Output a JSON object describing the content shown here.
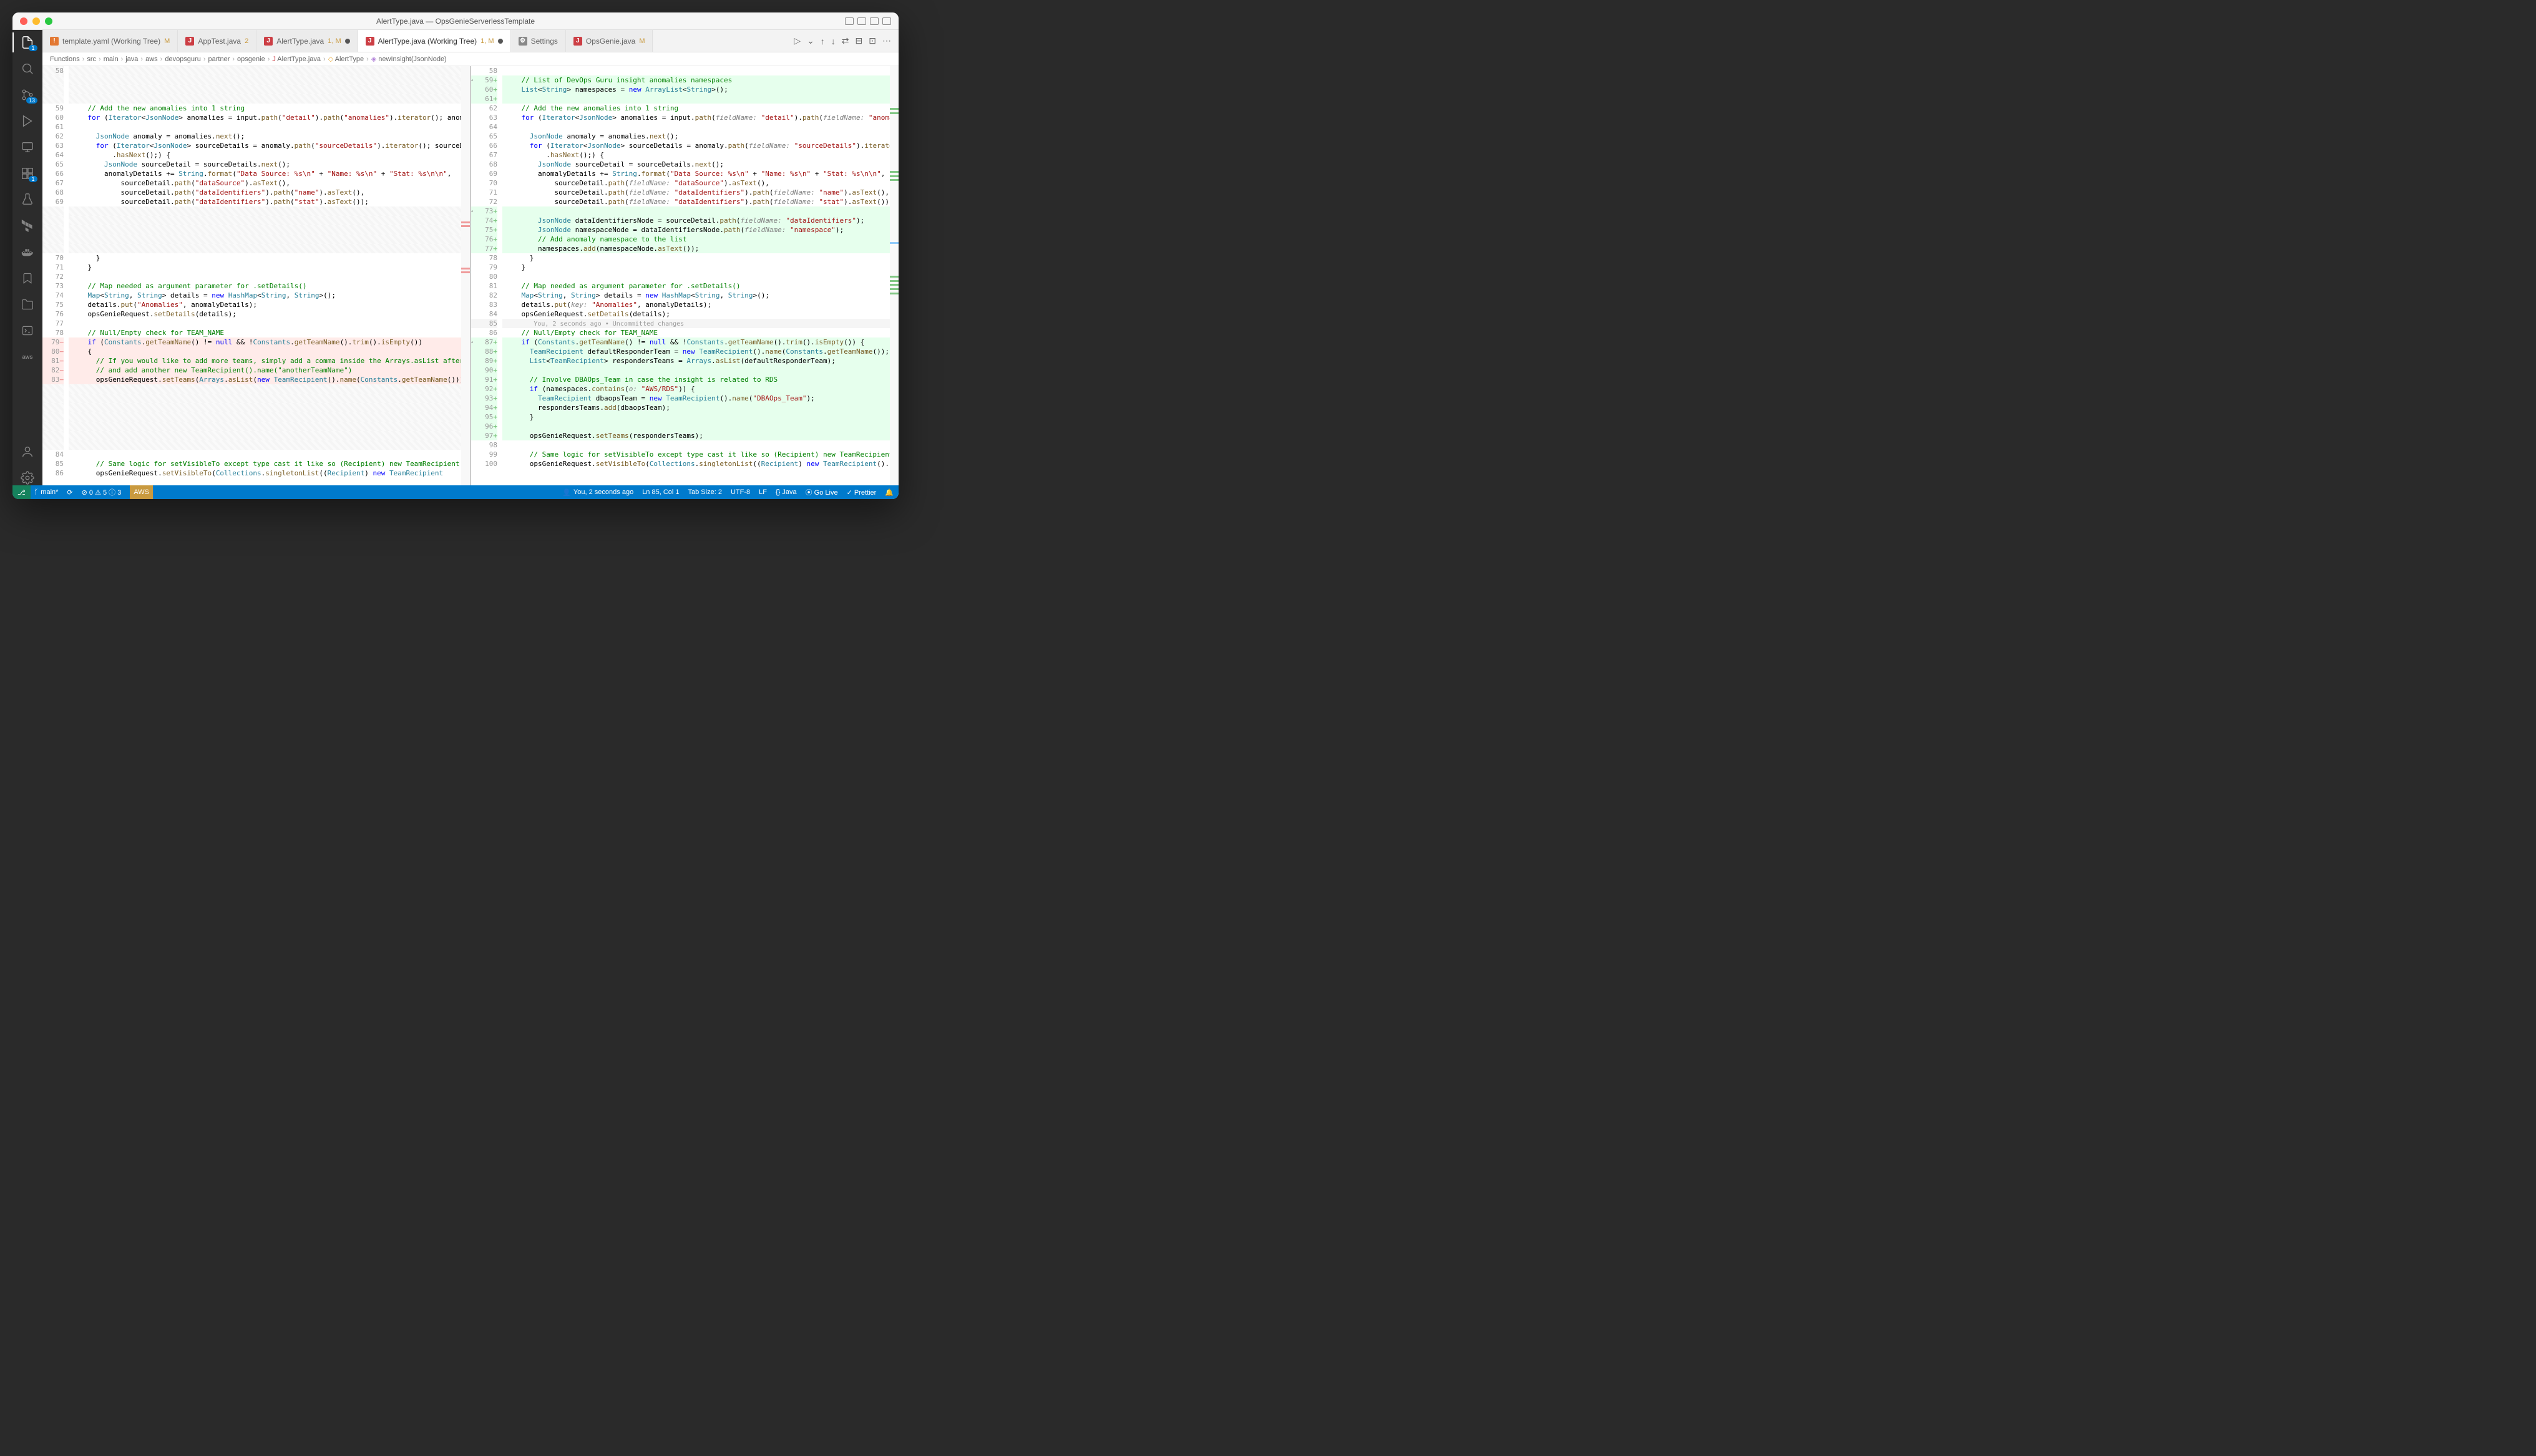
{
  "window": {
    "title": "AlertType.java — OpsGenieServerlessTemplate"
  },
  "tabs": [
    {
      "icon": "!",
      "iconColor": "#e37933",
      "label": "template.yaml (Working Tree)",
      "mod": "M",
      "active": false
    },
    {
      "icon": "J",
      "iconColor": "#cc3e44",
      "label": "AppTest.java",
      "mod": "2",
      "active": false
    },
    {
      "icon": "J",
      "iconColor": "#cc3e44",
      "label": "AlertType.java",
      "mod": "1, M",
      "dirty": true,
      "active": false
    },
    {
      "icon": "J",
      "iconColor": "#cc3e44",
      "label": "AlertType.java (Working Tree)",
      "mod": "1, M",
      "dirty": true,
      "active": true
    },
    {
      "icon": "⚙",
      "iconColor": "#888",
      "label": "Settings",
      "active": false
    },
    {
      "icon": "J",
      "iconColor": "#cc3e44",
      "label": "OpsGenie.java",
      "mod": "M",
      "active": false
    }
  ],
  "breadcrumbs": [
    "Functions",
    "src",
    "main",
    "java",
    "aws",
    "devopsguru",
    "partner",
    "opsgenie",
    "AlertType.java",
    "AlertType",
    "newInsight(JsonNode)"
  ],
  "activitybar": {
    "explorer_badge": "1",
    "scm_badge": "13",
    "ext_badge": "1"
  },
  "left_pane": {
    "lines": [
      {
        "n": "58",
        "cls": "ignore-hatch",
        "html": ""
      },
      {
        "n": "",
        "cls": "ignore-hatch",
        "html": ""
      },
      {
        "n": "",
        "cls": "ignore-hatch",
        "html": ""
      },
      {
        "n": "",
        "cls": "ignore-hatch",
        "html": ""
      },
      {
        "n": "59",
        "html": "    <span class='c-comment'>// Add the new anomalies into 1 string</span>"
      },
      {
        "n": "60",
        "html": "    <span class='c-kw'>for</span> (<span class='c-type'>Iterator</span>&lt;<span class='c-type'>JsonNode</span>&gt; anomalies = input.<span class='c-method'>path</span>(<span class='c-str'>\"detail\"</span>).<span class='c-method'>path</span>(<span class='c-str'>\"anomalies\"</span>).<span class='c-method'>iterator</span>(); anoma"
      },
      {
        "n": "61",
        "html": ""
      },
      {
        "n": "62",
        "html": "      <span class='c-type'>JsonNode</span> anomaly = anomalies.<span class='c-method'>next</span>();"
      },
      {
        "n": "63",
        "html": "      <span class='c-kw'>for</span> (<span class='c-type'>Iterator</span>&lt;<span class='c-type'>JsonNode</span>&gt; sourceDetails = anomaly.<span class='c-method'>path</span>(<span class='c-str'>\"sourceDetails\"</span>).<span class='c-method'>iterator</span>(); sourceDe"
      },
      {
        "n": "64",
        "html": "          .<span class='c-method'>hasNext</span>();) {"
      },
      {
        "n": "65",
        "html": "        <span class='c-type'>JsonNode</span> sourceDetail = sourceDetails.<span class='c-method'>next</span>();"
      },
      {
        "n": "66",
        "html": "        anomalyDetails += <span class='c-type'>String</span>.<span class='c-method'>format</span>(<span class='c-str'>\"Data Source: %s\\n\"</span> + <span class='c-str'>\"Name: %s\\n\"</span> + <span class='c-str'>\"Stat: %s\\n\\n\"</span>,"
      },
      {
        "n": "67",
        "html": "            sourceDetail.<span class='c-method'>path</span>(<span class='c-str'>\"dataSource\"</span>).<span class='c-method'>asText</span>(),"
      },
      {
        "n": "68",
        "html": "            sourceDetail.<span class='c-method'>path</span>(<span class='c-str'>\"dataIdentifiers\"</span>).<span class='c-method'>path</span>(<span class='c-str'>\"name\"</span>).<span class='c-method'>asText</span>(),"
      },
      {
        "n": "69",
        "html": "            sourceDetail.<span class='c-method'>path</span>(<span class='c-str'>\"dataIdentifiers\"</span>).<span class='c-method'>path</span>(<span class='c-str'>\"stat\"</span>).<span class='c-method'>asText</span>());"
      },
      {
        "n": "",
        "cls": "ignore-hatch",
        "html": ""
      },
      {
        "n": "",
        "cls": "ignore-hatch",
        "html": ""
      },
      {
        "n": "",
        "cls": "ignore-hatch",
        "html": ""
      },
      {
        "n": "",
        "cls": "ignore-hatch",
        "html": ""
      },
      {
        "n": "",
        "cls": "ignore-hatch",
        "html": ""
      },
      {
        "n": "70",
        "html": "      }"
      },
      {
        "n": "71",
        "html": "    }"
      },
      {
        "n": "72",
        "html": ""
      },
      {
        "n": "73",
        "html": "    <span class='c-comment'>// Map needed as argument parameter for .setDetails()</span>"
      },
      {
        "n": "74",
        "html": "    <span class='c-type'>Map</span>&lt;<span class='c-type'>String</span>, <span class='c-type'>String</span>&gt; details = <span class='c-kw'>new</span> <span class='c-type'>HashMap</span>&lt;<span class='c-type'>String</span>, <span class='c-type'>String</span>&gt;();"
      },
      {
        "n": "75",
        "html": "    details.<span class='c-method'>put</span>(<span class='c-str'>\"Anomalies\"</span>, anomalyDetails);"
      },
      {
        "n": "76",
        "html": "    opsGenieRequest.<span class='c-method'>setDetails</span>(details);"
      },
      {
        "n": "77",
        "html": ""
      },
      {
        "n": "78",
        "html": "    <span class='c-comment'>// Null/Empty check for TEAM_NAME</span>"
      },
      {
        "n": "79",
        "cls": "removed",
        "gmark": "−",
        "html": "    <span class='c-kw'>if</span> (<span class='c-type'>Constants</span>.<span class='c-method'>getTeamName</span>() != <span class='c-kw'>null</span> &amp;&amp; !<span class='c-type'>Constants</span>.<span class='c-method'>getTeamName</span>().<span class='c-method'>trim</span>().<span class='c-method'>isEmpty</span>())"
      },
      {
        "n": "80",
        "cls": "removed",
        "gmark": "−",
        "html": "    {"
      },
      {
        "n": "81",
        "cls": "removed",
        "gmark": "−",
        "html": "      <span class='c-comment'>// If you would like to add more teams, simply add a comma inside the Arrays.asList after</span>"
      },
      {
        "n": "82",
        "cls": "removed",
        "gmark": "−",
        "html": "      <span class='c-comment'>// and add another new TeamRecipient().name(\"anotherTeamName\")</span>"
      },
      {
        "n": "83",
        "cls": "removed",
        "gmark": "−",
        "html": "      opsGenieRequest.<span class='c-method'>setTeams</span>(<span class='c-type'>Arrays</span>.<span class='c-method'>asList</span>(<span class='c-kw'>new</span> <span class='c-type'>TeamRecipient</span>().<span class='c-method'>name</span>(<span class='c-type'>Constants</span>.<span class='c-method'>getTeamName</span>())));"
      },
      {
        "n": "",
        "cls": "ignore-hatch",
        "html": ""
      },
      {
        "n": "",
        "cls": "ignore-hatch",
        "html": ""
      },
      {
        "n": "",
        "cls": "ignore-hatch",
        "html": ""
      },
      {
        "n": "",
        "cls": "ignore-hatch",
        "html": ""
      },
      {
        "n": "",
        "cls": "ignore-hatch",
        "html": ""
      },
      {
        "n": "",
        "cls": "ignore-hatch",
        "html": ""
      },
      {
        "n": "",
        "cls": "ignore-hatch",
        "html": ""
      },
      {
        "n": "84",
        "html": ""
      },
      {
        "n": "85",
        "html": "      <span class='c-comment'>// Same logic for setVisibleTo except type cast it like so (Recipient) new TeamRecipient</span>"
      },
      {
        "n": "86",
        "html": "      opsGenieRequest.<span class='c-method'>setVisibleTo</span>(<span class='c-type'>Collections</span>.<span class='c-method'>singletonList</span>((<span class='c-type'>Recipient</span>) <span class='c-kw'>new</span> <span class='c-type'>TeamRecipient</span>"
      }
    ]
  },
  "right_pane": {
    "lines": [
      {
        "n": "58",
        "html": ""
      },
      {
        "n": "59",
        "cls": "added",
        "gmark": "+",
        "html": "    <span class='c-comment'>// List of DevOps Guru insight anomalies namespaces</span>"
      },
      {
        "n": "60",
        "cls": "added",
        "gmark": "+",
        "html": "    <span class='c-type'>List</span>&lt;<span class='c-type'>String</span>&gt; namespaces = <span class='c-kw'>new</span> <span class='c-type'>ArrayList</span>&lt;<span class='c-type'>String</span>&gt;();"
      },
      {
        "n": "61",
        "cls": "added",
        "gmark": "+",
        "html": ""
      },
      {
        "n": "62",
        "html": "    <span class='c-comment'>// Add the new anomalies into 1 string</span>"
      },
      {
        "n": "63",
        "html": "    <span class='c-kw'>for</span> (<span class='c-type'>Iterator</span>&lt;<span class='c-type'>JsonNode</span>&gt; anomalies = input.<span class='c-method'>path</span>(<span class='c-ann'>fieldName:</span> <span class='c-str'>\"detail\"</span>).<span class='c-method'>path</span>(<span class='c-ann'>fieldName:</span> <span class='c-str'>\"anomalies\"</span>)."
      },
      {
        "n": "64",
        "html": ""
      },
      {
        "n": "65",
        "html": "      <span class='c-type'>JsonNode</span> anomaly = anomalies.<span class='c-method'>next</span>();"
      },
      {
        "n": "66",
        "html": "      <span class='c-kw'>for</span> (<span class='c-type'>Iterator</span>&lt;<span class='c-type'>JsonNode</span>&gt; sourceDetails = anomaly.<span class='c-method'>path</span>(<span class='c-ann'>fieldName:</span> <span class='c-str'>\"sourceDetails\"</span>).<span class='c-method'>iterator</span>(); so"
      },
      {
        "n": "67",
        "html": "          .<span class='c-method'>hasNext</span>();) {"
      },
      {
        "n": "68",
        "html": "        <span class='c-type'>JsonNode</span> sourceDetail = sourceDetails.<span class='c-method'>next</span>();"
      },
      {
        "n": "69",
        "html": "        anomalyDetails += <span class='c-type'>String</span>.<span class='c-method'>format</span>(<span class='c-str'>\"Data Source: %s\\n\"</span> + <span class='c-str'>\"Name: %s\\n\"</span> + <span class='c-str'>\"Stat: %s\\n\\n\"</span>,"
      },
      {
        "n": "70",
        "html": "            sourceDetail.<span class='c-method'>path</span>(<span class='c-ann'>fieldName:</span> <span class='c-str'>\"dataSource\"</span>).<span class='c-method'>asText</span>(),"
      },
      {
        "n": "71",
        "html": "            sourceDetail.<span class='c-method'>path</span>(<span class='c-ann'>fieldName:</span> <span class='c-str'>\"dataIdentifiers\"</span>).<span class='c-method'>path</span>(<span class='c-ann'>fieldName:</span> <span class='c-str'>\"name\"</span>).<span class='c-method'>asText</span>(),"
      },
      {
        "n": "72",
        "html": "            sourceDetail.<span class='c-method'>path</span>(<span class='c-ann'>fieldName:</span> <span class='c-str'>\"dataIdentifiers\"</span>).<span class='c-method'>path</span>(<span class='c-ann'>fieldName:</span> <span class='c-str'>\"stat\"</span>).<span class='c-method'>asText</span>());"
      },
      {
        "n": "73",
        "cls": "added",
        "gmark": "+",
        "html": ""
      },
      {
        "n": "74",
        "cls": "added",
        "gmark": "+",
        "html": "        <span class='c-type'>JsonNode</span> dataIdentifiersNode = sourceDetail.<span class='c-method'>path</span>(<span class='c-ann'>fieldName:</span> <span class='c-str'>\"dataIdentifiers\"</span>);"
      },
      {
        "n": "75",
        "cls": "added",
        "gmark": "+",
        "html": "        <span class='c-type'>JsonNode</span> namespaceNode = dataIdentifiersNode.<span class='c-method'>path</span>(<span class='c-ann'>fieldName:</span> <span class='c-str'>\"namespace\"</span>);"
      },
      {
        "n": "76",
        "cls": "added",
        "gmark": "+",
        "html": "        <span class='c-comment'>// Add anomaly namespace to the list</span>"
      },
      {
        "n": "77",
        "cls": "added",
        "gmark": "+",
        "html": "        namespaces.<span class='c-method'>add</span>(namespaceNode.<span class='c-method'>asText</span>());"
      },
      {
        "n": "78",
        "html": "      }"
      },
      {
        "n": "79",
        "html": "    }"
      },
      {
        "n": "80",
        "html": ""
      },
      {
        "n": "81",
        "html": "    <span class='c-comment'>// Map needed as argument parameter for .setDetails()</span>"
      },
      {
        "n": "82",
        "html": "    <span class='c-type'>Map</span>&lt;<span class='c-type'>String</span>, <span class='c-type'>String</span>&gt; details = <span class='c-kw'>new</span> <span class='c-type'>HashMap</span>&lt;<span class='c-type'>String</span>, <span class='c-type'>String</span>&gt;();"
      },
      {
        "n": "83",
        "html": "    details.<span class='c-method'>put</span>(<span class='c-ann'>key:</span> <span class='c-str'>\"Anomalies\"</span>, anomalyDetails);"
      },
      {
        "n": "84",
        "html": "    opsGenieRequest.<span class='c-method'>setDetails</span>(details);"
      },
      {
        "n": "85",
        "cls": "cursor-line",
        "html": "       <span class='lens'>You, 2 seconds ago • Uncommitted changes</span>"
      },
      {
        "n": "86",
        "html": "    <span class='c-comment'>// Null/Empty check for TEAM_NAME</span>"
      },
      {
        "n": "87",
        "cls": "added",
        "gmark": "+",
        "html": "    <span class='c-kw'>if</span> (<span class='c-type'>Constants</span>.<span class='c-method'>getTeamName</span>() != <span class='c-kw'>null</span> &amp;&amp; !<span class='c-type'>Constants</span>.<span class='c-method'>getTeamName</span>().<span class='c-method'>trim</span>().<span class='c-method'>isEmpty</span>()) {"
      },
      {
        "n": "88",
        "cls": "added",
        "gmark": "+",
        "html": "      <span class='c-type'>TeamRecipient</span> defaultResponderTeam = <span class='c-kw'>new</span> <span class='c-type'>TeamRecipient</span>().<span class='c-method'>name</span>(<span class='c-type'>Constants</span>.<span class='c-method'>getTeamName</span>());"
      },
      {
        "n": "89",
        "cls": "added",
        "gmark": "+",
        "html": "      <span class='c-type'>List</span>&lt;<span class='c-type'>TeamRecipient</span>&gt; respondersTeams = <span class='c-type'>Arrays</span>.<span class='c-method'>asList</span>(defaultResponderTeam);"
      },
      {
        "n": "90",
        "cls": "added",
        "gmark": "+",
        "html": ""
      },
      {
        "n": "91",
        "cls": "added",
        "gmark": "+",
        "html": "      <span class='c-comment'>// Involve DBAOps_Team in case the insight is related to RDS</span>"
      },
      {
        "n": "92",
        "cls": "added",
        "gmark": "+",
        "html": "      <span class='c-kw'>if</span> (namespaces.<span class='c-method'>contains</span>(<span class='c-ann'>o:</span> <span class='c-str'>\"AWS/RDS\"</span>)) {"
      },
      {
        "n": "93",
        "cls": "added",
        "gmark": "+",
        "html": "        <span class='c-type'>TeamRecipient</span> dbaopsTeam = <span class='c-kw'>new</span> <span class='c-type'>TeamRecipient</span>().<span class='c-method'>name</span>(<span class='c-str'>\"DBAOps_Team\"</span>);"
      },
      {
        "n": "94",
        "cls": "added",
        "gmark": "+",
        "html": "        respondersTeams.<span class='c-method'>add</span>(dbaopsTeam);"
      },
      {
        "n": "95",
        "cls": "added",
        "gmark": "+",
        "html": "      }"
      },
      {
        "n": "96",
        "cls": "added",
        "gmark": "+",
        "html": ""
      },
      {
        "n": "97",
        "cls": "added",
        "gmark": "+",
        "html": "      opsGenieRequest.<span class='c-method'>setTeams</span>(respondersTeams);"
      },
      {
        "n": "98",
        "html": ""
      },
      {
        "n": "99",
        "html": "      <span class='c-comment'>// Same logic for setVisibleTo except type cast it like so (Recipient) new TeamRecipient().nam</span>"
      },
      {
        "n": "100",
        "html": "      opsGenieRequest.<span class='c-method'>setVisibleTo</span>(<span class='c-type'>Collections</span>.<span class='c-method'>singletonList</span>((<span class='c-type'>Recipient</span>) <span class='c-kw'>new</span> <span class='c-type'>TeamRecipient</span>().<span class='c-method'>name</span>(<span class='c-str'>\"T</span>"
      }
    ]
  },
  "statusbar": {
    "branch": "main*",
    "sync": "⟳",
    "problems": "⊘ 0 ⚠ 5 ⓘ 3",
    "aws": "AWS",
    "blame": "You, 2 seconds ago",
    "pos": "Ln 85, Col 1",
    "tabsize": "Tab Size: 2",
    "encoding": "UTF-8",
    "eol": "LF",
    "lang": "{} Java",
    "golive": "⦿ Go Live",
    "prettier": "✓ Prettier"
  },
  "colors": {
    "added_bg": "#e6ffed",
    "removed_bg": "#ffebe9",
    "statusbar_bg": "#007acc"
  }
}
